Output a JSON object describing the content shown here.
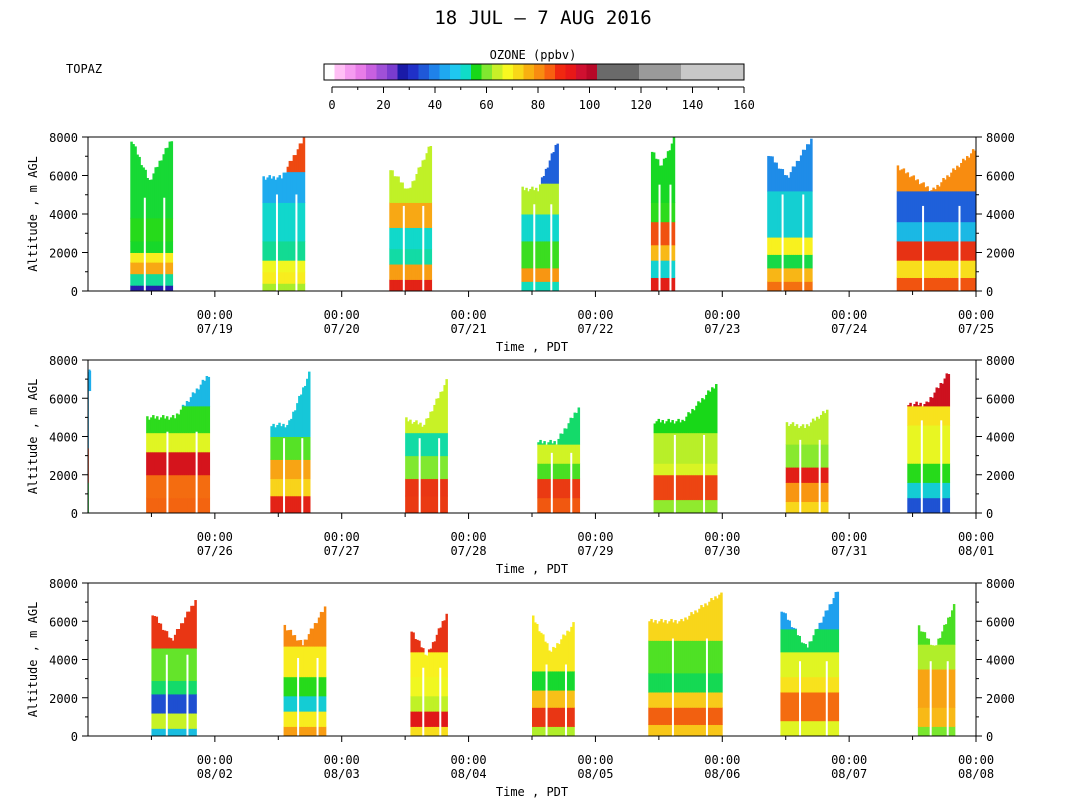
{
  "title": "18 JUL – 7 AUG 2016",
  "station": "TOPAZ",
  "colorbar": {
    "label": "OZONE (ppbv)",
    "ticks": [
      0,
      20,
      40,
      60,
      80,
      100,
      120,
      140,
      160
    ],
    "range": [
      0,
      160
    ],
    "colors": [
      "#ffffff",
      "#ffbff5",
      "#f59bf0",
      "#e87ce8",
      "#c860e0",
      "#a050d8",
      "#7a3ccf",
      "#1a1aa8",
      "#2030c8",
      "#1f58d8",
      "#1f82ea",
      "#1fa8f0",
      "#1fc8f0",
      "#10dcc8",
      "#18d818",
      "#80e830",
      "#c8f028",
      "#f8f820",
      "#f8d818",
      "#f8b010",
      "#f88c10",
      "#f86010",
      "#f02810",
      "#e81818",
      "#d01030",
      "#b80828",
      "#6a6a6a",
      "#6a6a6a",
      "#6a6a6a",
      "#6a6a6a",
      "#9a9a9a",
      "#9a9a9a",
      "#9a9a9a",
      "#9a9a9a",
      "#c8c8c8",
      "#c8c8c8",
      "#c8c8c8",
      "#c8c8c8",
      "#c8c8c8",
      "#c8c8c8"
    ]
  },
  "chart_data": [
    {
      "type": "heatmap",
      "ylabel": "Altitude , m AGL",
      "xlabel": "Time , PDT",
      "ylim": [
        0,
        8000
      ],
      "yticks": [
        0,
        2000,
        4000,
        6000,
        8000
      ],
      "xticks": [
        "00:00 07/19",
        "00:00 07/20",
        "00:00 07/21",
        "00:00 07/22",
        "00:00 07/23",
        "00:00 07/24",
        "00:00 07/25"
      ],
      "tick_times": [
        "00:00",
        "00:00",
        "00:00",
        "00:00",
        "00:00",
        "00:00",
        "00:00"
      ],
      "tick_dates": [
        "07/19",
        "07/20",
        "07/21",
        "07/22",
        "07/23",
        "07/24",
        "07/25"
      ],
      "xlim": [
        "2016-07-18 00:00",
        "2016-07-25 00:00"
      ],
      "observations": [
        {
          "start": "2016-07-18 08:00",
          "end": "2016-07-18 16:00",
          "top_start": 8000,
          "top_min": 5700,
          "top_end": 8000,
          "layers": [
            [
              0,
              300,
              30
            ],
            [
              300,
              900,
              50
            ],
            [
              900,
              1500,
              80
            ],
            [
              1500,
              2000,
              66
            ],
            [
              2000,
              2600,
              57
            ],
            [
              2600,
              3800,
              52
            ],
            [
              3800,
              8000,
              55
            ]
          ]
        },
        {
          "start": "2016-07-19 09:00",
          "end": "2016-07-19 17:00",
          "top_start": 5900,
          "top_min": 5900,
          "top_end": 8000,
          "layers": [
            [
              0,
              400,
              64
            ],
            [
              400,
              1000,
              74
            ],
            [
              1000,
              1600,
              66
            ],
            [
              1600,
              2600,
              55
            ],
            [
              2600,
              4600,
              46
            ],
            [
              4600,
              6200,
              44
            ],
            [
              6200,
              8000,
              82
            ]
          ]
        },
        {
          "start": "2016-07-20 09:00",
          "end": "2016-07-20 17:00",
          "top_start": 6400,
          "top_min": 5200,
          "top_end": 7700,
          "layers": [
            [
              0,
              600,
              86
            ],
            [
              600,
              1400,
              78
            ],
            [
              1400,
              2200,
              56
            ],
            [
              2200,
              3300,
              48
            ],
            [
              3300,
              4600,
              80
            ],
            [
              4600,
              7700,
              62
            ]
          ]
        },
        {
          "start": "2016-07-21 10:00",
          "end": "2016-07-21 17:00",
          "top_start": 5300,
          "top_min": 5300,
          "top_end": 7900,
          "layers": [
            [
              0,
              500,
              52
            ],
            [
              500,
              1200,
              74
            ],
            [
              1200,
              2600,
              58
            ],
            [
              2600,
              4000,
              54
            ],
            [
              4000,
              5600,
              63
            ],
            [
              5600,
              8000,
              38
            ]
          ]
        },
        {
          "start": "2016-07-22 10:30",
          "end": "2016-07-22 15:00",
          "top_start": 7300,
          "top_min": 6500,
          "top_end": 8000,
          "layers": [
            [
              0,
              700,
              88
            ],
            [
              700,
              1600,
              50
            ],
            [
              1600,
              2400,
              70
            ],
            [
              2400,
              3600,
              86
            ],
            [
              3600,
              4600,
              62
            ],
            [
              4600,
              8000,
              54
            ]
          ]
        },
        {
          "start": "2016-07-23 08:30",
          "end": "2016-07-23 17:00",
          "top_start": 7200,
          "top_min": 5900,
          "top_end": 8000,
          "layers": [
            [
              0,
              500,
              86
            ],
            [
              500,
              1200,
              72
            ],
            [
              1200,
              1900,
              56
            ],
            [
              1900,
              2800,
              64
            ],
            [
              2800,
              5200,
              48
            ],
            [
              5200,
              8000,
              44
            ]
          ]
        },
        {
          "start": "2016-07-24 09:00",
          "end": "2016-07-24 23:59",
          "top_start": 6500,
          "top_min": 5200,
          "top_end": 7400,
          "layers": [
            [
              0,
              700,
              84
            ],
            [
              700,
              1600,
              74
            ],
            [
              1600,
              2600,
              86
            ],
            [
              2600,
              3600,
              46
            ],
            [
              3600,
              5200,
              30
            ],
            [
              5200,
              7400,
              80
            ]
          ]
        }
      ]
    },
    {
      "type": "heatmap",
      "ylabel": "Altitude , m AGL",
      "xlabel": "Time , PDT",
      "ylim": [
        0,
        8000
      ],
      "yticks": [
        0,
        2000,
        4000,
        6000,
        8000
      ],
      "xticks": [
        "00:00 07/26",
        "00:00 07/27",
        "00:00 07/28",
        "00:00 07/29",
        "00:00 07/30",
        "00:00 07/31",
        "00:00 08/01"
      ],
      "tick_times": [
        "00:00",
        "00:00",
        "00:00",
        "00:00",
        "00:00",
        "00:00",
        "00:00"
      ],
      "tick_dates": [
        "07/26",
        "07/27",
        "07/28",
        "07/29",
        "07/30",
        "07/31",
        "08/01"
      ],
      "xlim": [
        "2016-07-25 00:00",
        "2016-08-01 00:00"
      ],
      "observations": [
        {
          "start": "2016-07-25 00:00",
          "end": "2016-07-25 00:30",
          "top_start": 7500,
          "top_min": 7500,
          "top_end": 7500,
          "layers": [
            [
              0,
              1600,
              60
            ],
            [
              1600,
              3400,
              86
            ],
            [
              3400,
              7500,
              46
            ]
          ]
        },
        {
          "start": "2016-07-25 11:00",
          "end": "2016-07-25 23:00",
          "top_start": 5000,
          "top_min": 5000,
          "top_end": 7300,
          "layers": [
            [
              0,
              800,
              84
            ],
            [
              800,
              2000,
              88
            ],
            [
              2000,
              3200,
              92
            ],
            [
              3200,
              4200,
              70
            ],
            [
              4200,
              5600,
              54
            ],
            [
              5600,
              7300,
              46
            ]
          ]
        },
        {
          "start": "2016-07-26 10:30",
          "end": "2016-07-26 18:00",
          "top_start": 4600,
          "top_min": 4600,
          "top_end": 7400,
          "layers": [
            [
              0,
              900,
              86
            ],
            [
              900,
              1800,
              72
            ],
            [
              1800,
              2800,
              82
            ],
            [
              2800,
              4000,
              58
            ],
            [
              4000,
              7400,
              50
            ]
          ]
        },
        {
          "start": "2016-07-27 12:00",
          "end": "2016-07-27 20:00",
          "top_start": 4900,
          "top_min": 4600,
          "top_end": 7000,
          "layers": [
            [
              0,
              900,
              90
            ],
            [
              900,
              1800,
              84
            ],
            [
              1800,
              3000,
              62
            ],
            [
              3000,
              4200,
              56
            ],
            [
              4200,
              7000,
              64
            ]
          ]
        },
        {
          "start": "2016-07-28 13:00",
          "end": "2016-07-28 21:00",
          "top_start": 3700,
          "top_min": 3700,
          "top_end": 5600,
          "layers": [
            [
              0,
              800,
              82
            ],
            [
              800,
              1800,
              90
            ],
            [
              1800,
              2600,
              54
            ],
            [
              2600,
              3600,
              66
            ],
            [
              3600,
              5600,
              58
            ]
          ]
        },
        {
          "start": "2016-07-29 11:00",
          "end": "2016-07-29 23:00",
          "top_start": 4800,
          "top_min": 4800,
          "top_end": 6800,
          "layers": [
            [
              0,
              700,
              66
            ],
            [
              700,
              2000,
              84
            ],
            [
              2000,
              2600,
              68
            ],
            [
              2600,
              4200,
              60
            ],
            [
              4200,
              6800,
              56
            ]
          ]
        },
        {
          "start": "2016-07-30 12:00",
          "end": "2016-07-30 20:00",
          "top_start": 4700,
          "top_min": 4500,
          "top_end": 5400,
          "layers": [
            [
              0,
              600,
              70
            ],
            [
              600,
              1600,
              82
            ],
            [
              1600,
              2400,
              88
            ],
            [
              2400,
              3600,
              64
            ],
            [
              3600,
              5400,
              60
            ]
          ]
        },
        {
          "start": "2016-07-31 11:00",
          "end": "2016-07-31 19:00",
          "top_start": 5700,
          "top_min": 5700,
          "top_end": 7400,
          "layers": [
            [
              0,
              800,
              38
            ],
            [
              800,
              1600,
              46
            ],
            [
              1600,
              2600,
              60
            ],
            [
              2600,
              4600,
              64
            ],
            [
              4600,
              5600,
              72
            ],
            [
              5600,
              7400,
              90
            ]
          ]
        }
      ]
    },
    {
      "type": "heatmap",
      "ylabel": "Altitude , m AGL",
      "xlabel": "Time , PDT",
      "ylim": [
        0,
        8000
      ],
      "yticks": [
        0,
        2000,
        4000,
        6000,
        8000
      ],
      "xticks": [
        "00:00 08/02",
        "00:00 08/03",
        "00:00 08/04",
        "00:00 08/05",
        "00:00 08/06",
        "00:00 08/07",
        "00:00 08/08"
      ],
      "tick_times": [
        "00:00",
        "00:00",
        "00:00",
        "00:00",
        "00:00",
        "00:00",
        "00:00"
      ],
      "tick_dates": [
        "08/02",
        "08/03",
        "08/04",
        "08/05",
        "08/06",
        "08/07",
        "08/08"
      ],
      "xlim": [
        "2016-08-01 00:00",
        "2016-08-08 00:00"
      ],
      "observations": [
        {
          "start": "2016-08-01 12:00",
          "end": "2016-08-01 20:30",
          "top_start": 6500,
          "top_min": 5000,
          "top_end": 7200,
          "layers": [
            [
              0,
              400,
              50
            ],
            [
              400,
              1200,
              64
            ],
            [
              1200,
              2200,
              36
            ],
            [
              2200,
              2900,
              50
            ],
            [
              2900,
              4600,
              62
            ],
            [
              4600,
              7200,
              84
            ]
          ]
        },
        {
          "start": "2016-08-02 13:00",
          "end": "2016-08-02 21:00",
          "top_start": 5800,
          "top_min": 4800,
          "top_end": 6800,
          "layers": [
            [
              0,
              500,
              78
            ],
            [
              500,
              1300,
              74
            ],
            [
              1300,
              2100,
              46
            ],
            [
              2100,
              3100,
              60
            ],
            [
              3100,
              4700,
              66
            ],
            [
              4700,
              6800,
              82
            ]
          ]
        },
        {
          "start": "2016-08-03 13:00",
          "end": "2016-08-03 20:00",
          "top_start": 5600,
          "top_min": 4200,
          "top_end": 6500,
          "layers": [
            [
              0,
              500,
              66
            ],
            [
              500,
              1300,
              92
            ],
            [
              1300,
              2100,
              70
            ],
            [
              2100,
              3100,
              66
            ],
            [
              3100,
              4400,
              72
            ],
            [
              4400,
              6500,
              86
            ]
          ]
        },
        {
          "start": "2016-08-04 12:00",
          "end": "2016-08-04 20:00",
          "top_start": 6300,
          "top_min": 4400,
          "top_end": 5900,
          "layers": [
            [
              0,
              500,
              66
            ],
            [
              500,
              1500,
              84
            ],
            [
              1500,
              2400,
              74
            ],
            [
              2400,
              3400,
              60
            ],
            [
              3400,
              6300,
              68
            ]
          ]
        },
        {
          "start": "2016-08-05 10:00",
          "end": "2016-08-05 23:59",
          "top_start": 6000,
          "top_min": 6000,
          "top_end": 7500,
          "layers": [
            [
              0,
              600,
              70
            ],
            [
              600,
              1500,
              86
            ],
            [
              1500,
              2300,
              68
            ],
            [
              2300,
              3300,
              54
            ],
            [
              3300,
              5000,
              64
            ],
            [
              5000,
              7500,
              70
            ]
          ]
        },
        {
          "start": "2016-08-06 11:00",
          "end": "2016-08-06 22:00",
          "top_start": 6700,
          "top_min": 4600,
          "top_end": 7700,
          "layers": [
            [
              0,
              800,
              70
            ],
            [
              800,
              2300,
              80
            ],
            [
              2300,
              3100,
              72
            ],
            [
              3100,
              4400,
              62
            ],
            [
              4400,
              5600,
              54
            ],
            [
              5600,
              7700,
              46
            ]
          ]
        },
        {
          "start": "2016-08-07 13:00",
          "end": "2016-08-07 20:00",
          "top_start": 5800,
          "top_min": 4600,
          "top_end": 6900,
          "layers": [
            [
              0,
              500,
              60
            ],
            [
              500,
              1500,
              78
            ],
            [
              1500,
              3500,
              74
            ],
            [
              3500,
              4800,
              66
            ],
            [
              4800,
              6900,
              54
            ]
          ]
        }
      ]
    }
  ]
}
